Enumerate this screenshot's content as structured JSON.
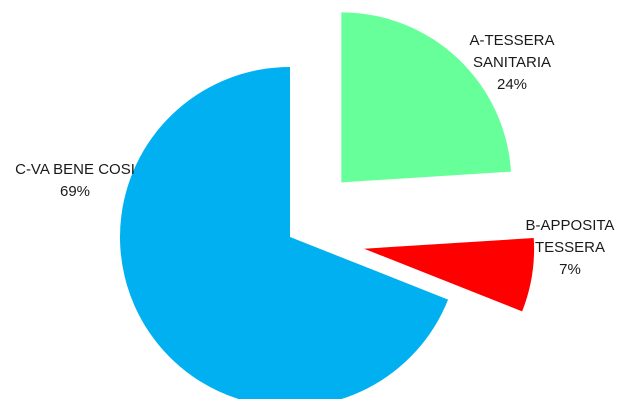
{
  "chart_data": {
    "type": "pie",
    "title": "",
    "slices": [
      {
        "name": "A-TESSERA SANITARIA",
        "label_lines": [
          "A-TESSERA",
          "SANITARIA",
          "24%"
        ],
        "value": 24,
        "color": "#66ff99",
        "exploded": true
      },
      {
        "name": "B-APPOSITA TESSERA",
        "label_lines": [
          "B-APPOSITA",
          "TESSERA",
          "7%"
        ],
        "value": 7,
        "color": "#ff0000",
        "exploded": true
      },
      {
        "name": "C-VA BENE COSI",
        "label_lines": [
          "C-VA BENE  COSI",
          "69%"
        ],
        "value": 69,
        "color": "#00b0f0",
        "exploded": false
      }
    ],
    "legend": "none",
    "data_labels": "outside"
  }
}
